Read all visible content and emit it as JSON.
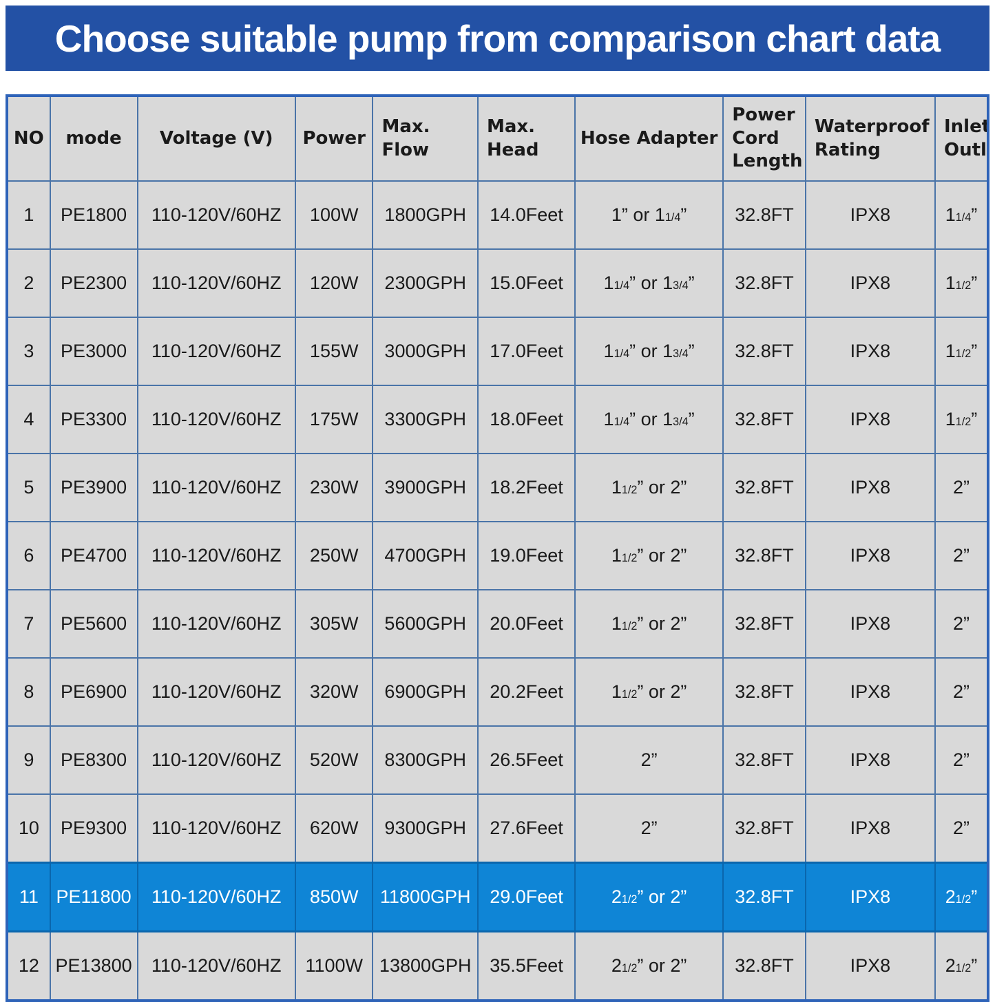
{
  "banner": {
    "title": "Choose suitable pump from comparison chart data"
  },
  "colors": {
    "banner_bg": "#2351A5",
    "banner_fg": "#FFFFFF",
    "table_border": "#2E63B8",
    "grid_line": "#4A74A8",
    "cell_bg": "#D9D9D9",
    "text": "#1A1A1A",
    "highlight_bg": "#0F85D6",
    "highlight_fg": "#FFFFFF",
    "highlight_grid": "#0A66AD"
  },
  "chart_data": {
    "type": "table",
    "title": "Choose suitable pump from comparison chart data",
    "columns": [
      {
        "key": "no",
        "label": "NO",
        "align": "center"
      },
      {
        "key": "mode",
        "label": "mode",
        "align": "center"
      },
      {
        "key": "voltage",
        "label": "Voltage (V)",
        "align": "center"
      },
      {
        "key": "power",
        "label": "Power",
        "align": "center"
      },
      {
        "key": "max_flow",
        "label": "Max.\nFlow",
        "align": "left"
      },
      {
        "key": "max_head",
        "label": "Max.\nHead",
        "align": "left"
      },
      {
        "key": "hose_adapter",
        "label": "Hose Adapter",
        "align": "center"
      },
      {
        "key": "power_cord_length",
        "label": "Power\nCord\nLength",
        "align": "left"
      },
      {
        "key": "waterproof_rating",
        "label": "Waterproof\nRating",
        "align": "left"
      },
      {
        "key": "inlet_outlet",
        "label": "Inlet/\nOutlet",
        "align": "left"
      }
    ],
    "column_widths_pct": [
      4.4,
      8.9,
      16.1,
      7.9,
      10.7,
      9.9,
      15.1,
      8.4,
      13.2,
      5.4
    ],
    "rows": [
      [
        "1",
        "PE1800",
        "110-120V/60HZ",
        "100W",
        "1800GPH",
        "14.0Feet",
        "1” or 1¼”",
        "32.8FT",
        "IPX8",
        "1¼”"
      ],
      [
        "2",
        "PE2300",
        "110-120V/60HZ",
        "120W",
        "2300GPH",
        "15.0Feet",
        "1¼” or 1¾”",
        "32.8FT",
        "IPX8",
        "1½”"
      ],
      [
        "3",
        "PE3000",
        "110-120V/60HZ",
        "155W",
        "3000GPH",
        "17.0Feet",
        "1¼” or 1¾”",
        "32.8FT",
        "IPX8",
        "1½”"
      ],
      [
        "4",
        "PE3300",
        "110-120V/60HZ",
        "175W",
        "3300GPH",
        "18.0Feet",
        "1¼” or 1¾”",
        "32.8FT",
        "IPX8",
        "1½”"
      ],
      [
        "5",
        "PE3900",
        "110-120V/60HZ",
        "230W",
        "3900GPH",
        "18.2Feet",
        "1½” or 2”",
        "32.8FT",
        "IPX8",
        "2”"
      ],
      [
        "6",
        "PE4700",
        "110-120V/60HZ",
        "250W",
        "4700GPH",
        "19.0Feet",
        "1½” or 2”",
        "32.8FT",
        "IPX8",
        "2”"
      ],
      [
        "7",
        "PE5600",
        "110-120V/60HZ",
        "305W",
        "5600GPH",
        "20.0Feet",
        "1½” or 2”",
        "32.8FT",
        "IPX8",
        "2”"
      ],
      [
        "8",
        "PE6900",
        "110-120V/60HZ",
        "320W",
        "6900GPH",
        "20.2Feet",
        "1½” or 2”",
        "32.8FT",
        "IPX8",
        "2”"
      ],
      [
        "9",
        "PE8300",
        "110-120V/60HZ",
        "520W",
        "8300GPH",
        "26.5Feet",
        "2”",
        "32.8FT",
        "IPX8",
        "2”"
      ],
      [
        "10",
        "PE9300",
        "110-120V/60HZ",
        "620W",
        "9300GPH",
        "27.6Feet",
        "2”",
        "32.8FT",
        "IPX8",
        "2”"
      ],
      [
        "11",
        "PE11800",
        "110-120V/60HZ",
        "850W",
        "11800GPH",
        "29.0Feet",
        "2½” or 2”",
        "32.8FT",
        "IPX8",
        "2½”"
      ],
      [
        "12",
        "PE13800",
        "110-120V/60HZ",
        "1100W",
        "13800GPH",
        "35.5Feet",
        "2½” or 2”",
        "32.8FT",
        "IPX8",
        "2½”"
      ]
    ],
    "highlighted_row_no": "11"
  }
}
